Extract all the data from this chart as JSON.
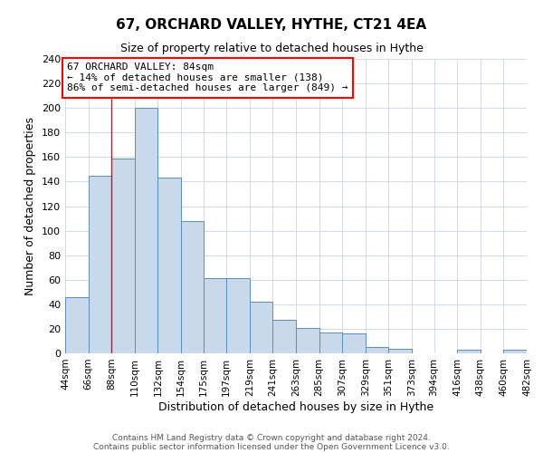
{
  "title": "67, ORCHARD VALLEY, HYTHE, CT21 4EA",
  "subtitle": "Size of property relative to detached houses in Hythe",
  "xlabel": "Distribution of detached houses by size in Hythe",
  "ylabel": "Number of detached properties",
  "bar_color": "#c9d9ec",
  "bar_edge_color": "#5b8db8",
  "background_color": "#ffffff",
  "grid_color": "#c8d4e0",
  "bin_labels": [
    "44sqm",
    "66sqm",
    "88sqm",
    "110sqm",
    "132sqm",
    "154sqm",
    "175sqm",
    "197sqm",
    "219sqm",
    "241sqm",
    "263sqm",
    "285sqm",
    "307sqm",
    "329sqm",
    "351sqm",
    "373sqm",
    "394sqm",
    "416sqm",
    "438sqm",
    "460sqm",
    "482sqm"
  ],
  "bar_values": [
    46,
    145,
    159,
    200,
    143,
    108,
    61,
    61,
    42,
    27,
    21,
    17,
    16,
    5,
    4,
    0,
    0,
    3,
    0,
    3
  ],
  "bin_edges": [
    44,
    66,
    88,
    110,
    132,
    154,
    175,
    197,
    219,
    241,
    263,
    285,
    307,
    329,
    351,
    373,
    394,
    416,
    438,
    460,
    482
  ],
  "ylim": [
    0,
    240
  ],
  "yticks": [
    0,
    20,
    40,
    60,
    80,
    100,
    120,
    140,
    160,
    180,
    200,
    220,
    240
  ],
  "red_line_x": 88,
  "annotation_title": "67 ORCHARD VALLEY: 84sqm",
  "annotation_line1": "← 14% of detached houses are smaller (138)",
  "annotation_line2": "86% of semi-detached houses are larger (849) →",
  "footer_line1": "Contains HM Land Registry data © Crown copyright and database right 2024.",
  "footer_line2": "Contains public sector information licensed under the Open Government Licence v3.0."
}
